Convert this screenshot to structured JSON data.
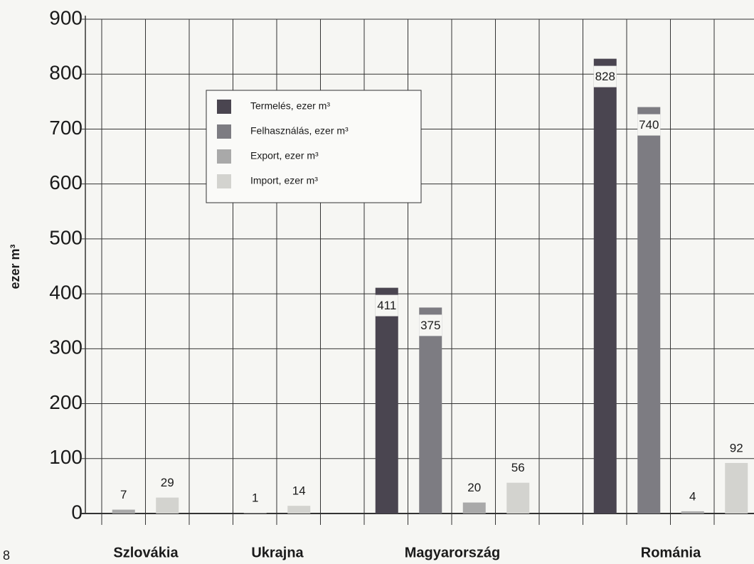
{
  "chart_data": {
    "type": "bar",
    "y_label": "ezer m³",
    "categories": [
      "Szlovákia",
      "Ukrajna",
      "Magyarország",
      "Románia"
    ],
    "series": [
      {
        "name": "Termelés, ezer m³",
        "color": "#4a4550",
        "values": [
          null,
          null,
          411,
          828
        ]
      },
      {
        "name": "Felhasználás, ezer m³",
        "color": "#7d7c82",
        "values": [
          null,
          null,
          375,
          740
        ]
      },
      {
        "name": "Export, ezer m³",
        "color": "#a9a9a9",
        "values": [
          7,
          1,
          20,
          4
        ]
      },
      {
        "name": "Import, ezer m³",
        "color": "#d3d3cf",
        "values": [
          29,
          14,
          56,
          92
        ]
      }
    ],
    "ylim": [
      0,
      900
    ],
    "yticks": [
      0,
      100,
      200,
      300,
      400,
      500,
      600,
      700,
      800,
      900
    ],
    "grid": true,
    "page_number": "8"
  }
}
